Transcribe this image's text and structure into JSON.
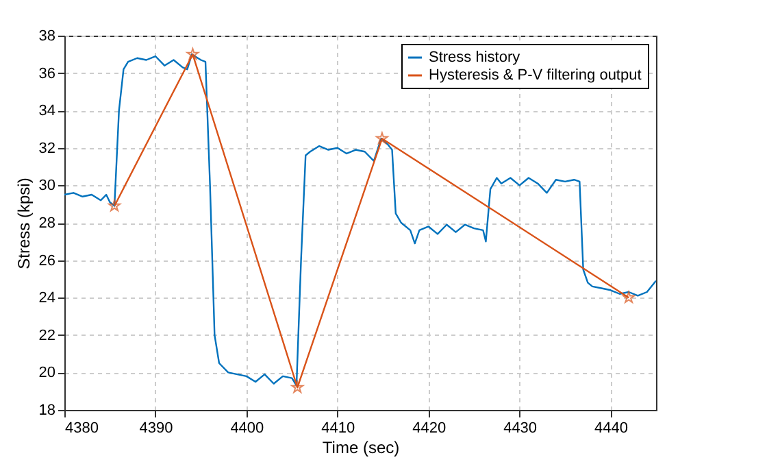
{
  "chart_data": {
    "type": "line",
    "xlabel": "Time (sec)",
    "ylabel": "Stress (kpsi)",
    "xlim": [
      4380,
      4445
    ],
    "xticks": [
      4380,
      4390,
      4400,
      4410,
      4420,
      4430,
      4440
    ],
    "ylim": [
      18,
      38
    ],
    "yticks": [
      18,
      20,
      22,
      24,
      26,
      28,
      30,
      32,
      34,
      36,
      38
    ],
    "grid": true,
    "legend": "top right",
    "series": [
      {
        "name": "Stress history",
        "color": "#0072bd",
        "marker": "none",
        "x": [
          4380,
          4381,
          4382,
          4383,
          4384,
          4384.6,
          4385,
          4385.5,
          4386,
          4386.5,
          4387,
          4388,
          4389,
          4390,
          4391,
          4392,
          4393,
          4393.5,
          4394,
          4395,
          4395.5,
          4396,
          4396.5,
          4397,
          4398,
          4399,
          4400,
          4401,
          4402,
          4403,
          4404,
          4405,
          4405.5,
          4406,
          4406.5,
          4407,
          4408,
          4409,
          4410,
          4411,
          4412,
          4413,
          4414,
          4414.8,
          4415.5,
          4416,
          4416.4,
          4417,
          4418,
          4418.5,
          4419,
          4420,
          4421,
          4422,
          4423,
          4424,
          4425,
          4426,
          4426.3,
          4426.8,
          4427.5,
          4428,
          4429,
          4430,
          4431,
          4432,
          4433,
          4434,
          4435,
          4436,
          4436.6,
          4437,
          4437.5,
          4438,
          4439,
          4440,
          4441,
          4442,
          4443,
          4444,
          4445
        ],
        "values": [
          29.5,
          29.6,
          29.4,
          29.5,
          29.2,
          29.5,
          29.1,
          28.9,
          34,
          36.2,
          36.6,
          36.8,
          36.7,
          36.9,
          36.4,
          36.7,
          36.3,
          36.2,
          37.0,
          36.7,
          36.6,
          30,
          22,
          20.5,
          20.0,
          19.9,
          19.8,
          19.5,
          19.9,
          19.4,
          19.8,
          19.7,
          19.3,
          26,
          31.6,
          31.8,
          32.1,
          31.9,
          32.0,
          31.7,
          31.9,
          31.8,
          31.3,
          32.5,
          32.2,
          31.9,
          28.5,
          28.0,
          27.6,
          26.9,
          27.6,
          27.8,
          27.4,
          27.9,
          27.5,
          27.9,
          27.7,
          27.6,
          27.0,
          29.8,
          30.4,
          30.1,
          30.4,
          30.0,
          30.4,
          30.1,
          29.6,
          30.3,
          30.2,
          30.3,
          30.2,
          25.5,
          24.8,
          24.6,
          24.5,
          24.4,
          24.2,
          24.3,
          24.1,
          24.3,
          24.9
        ]
      },
      {
        "name": "Hysteresis & P-V filtering output",
        "color": "#d95319",
        "marker": "star",
        "x": [
          4385.5,
          4394.1,
          4405.6,
          4414.9,
          4442
        ],
        "values": [
          28.9,
          37.0,
          19.2,
          32.5,
          24.0
        ]
      }
    ]
  }
}
